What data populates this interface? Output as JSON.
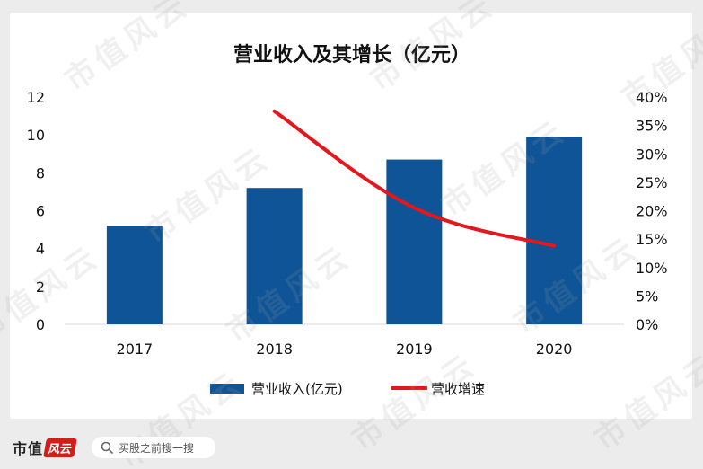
{
  "chart_data": {
    "type": "bar+line",
    "title": "营业收入及其增长（亿元）",
    "categories": [
      "2017",
      "2018",
      "2019",
      "2020"
    ],
    "y_left": {
      "ticks": [
        "0",
        "2",
        "4",
        "6",
        "8",
        "10",
        "12"
      ],
      "lim": [
        0,
        12
      ]
    },
    "y_right": {
      "ticks": [
        "0%",
        "5%",
        "10%",
        "15%",
        "20%",
        "25%",
        "30%",
        "35%",
        "40%"
      ],
      "lim": [
        0,
        40
      ]
    },
    "series": [
      {
        "name": "营业收入(亿元)",
        "kind": "bar",
        "axis": "left",
        "color": "#0f5497",
        "values": [
          5.2,
          7.2,
          8.7,
          9.9
        ]
      },
      {
        "name": "营收增速",
        "kind": "line",
        "axis": "right",
        "color": "#e3171c",
        "values": [
          null,
          37.5,
          20.5,
          13.8
        ]
      }
    ],
    "legend_position": "bottom",
    "grid": false
  },
  "watermark": "市值风云",
  "footer": {
    "brand": "市值",
    "brand_mark": "风云",
    "search_placeholder": "买股之前搜一搜",
    "search_icon": "search-icon"
  }
}
